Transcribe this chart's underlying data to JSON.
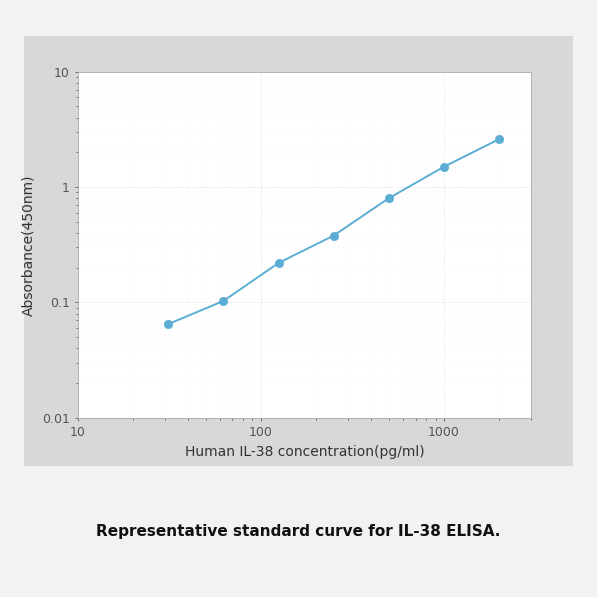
{
  "x_values": [
    31.25,
    62.5,
    125,
    250,
    500,
    1000,
    2000
  ],
  "y_values": [
    0.065,
    0.103,
    0.22,
    0.38,
    0.8,
    1.5,
    2.6
  ],
  "line_color": "#5badd4",
  "marker_color": "#5badd4",
  "xlabel": "Human IL-38 concentration(pg/ml)",
  "ylabel": "Absorbance(450nm)",
  "xlim": [
    10,
    3000
  ],
  "ylim": [
    0.01,
    10
  ],
  "caption": "Representative standard curve for IL-38 ELISA.",
  "background_color": "#f0f0f0",
  "plot_bg_color": "#ffffff",
  "outer_box_color": "#d8d8d8",
  "grid_color": "#d0d0d0",
  "marker_size": 6,
  "line_width": 1.4,
  "x_tick_labels": [
    "10",
    "100",
    "1000"
  ],
  "x_ticks": [
    10,
    100,
    1000
  ],
  "y_ticks": [
    0.01,
    0.1,
    1,
    10
  ],
  "y_tick_labels": [
    "0.01",
    "0.1",
    "1",
    "10"
  ]
}
